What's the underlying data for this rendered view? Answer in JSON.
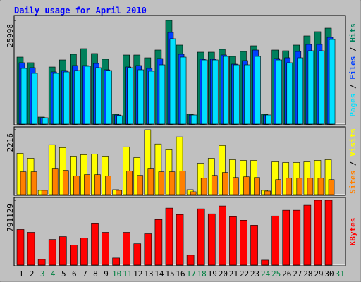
{
  "chart_data": {
    "type": "bar",
    "title": "Daily usage for April 2010",
    "legend_separator": " / ",
    "categories": [
      "1",
      "2",
      "3",
      "4",
      "5",
      "6",
      "7",
      "8",
      "9",
      "10",
      "11",
      "12",
      "13",
      "14",
      "15",
      "16",
      "17",
      "18",
      "19",
      "20",
      "21",
      "22",
      "23",
      "24",
      "25",
      "26",
      "27",
      "28",
      "29",
      "30",
      "31"
    ],
    "category_colors": [
      "#000000",
      "#000000",
      "#008040",
      "#008040",
      "#000000",
      "#000000",
      "#000000",
      "#000000",
      "#000000",
      "#008040",
      "#008040",
      "#000000",
      "#000000",
      "#000000",
      "#000000",
      "#000000",
      "#008040",
      "#008040",
      "#000000",
      "#000000",
      "#000000",
      "#000000",
      "#000000",
      "#008040",
      "#008040",
      "#000000",
      "#000000",
      "#000000",
      "#000000",
      "#000000",
      "#008040"
    ],
    "panels": [
      {
        "ylim": [
          0,
          25998
        ],
        "yticks": [
          25998
        ],
        "series": [
          {
            "name": "Hits",
            "color": "#00805c",
            "values": [
              16800,
              15390,
              1770,
              14320,
              16090,
              17510,
              18920,
              17690,
              16270,
              2480,
              17330,
              17330,
              16620,
              18570,
              25998,
              19810,
              2480,
              18040,
              18040,
              18750,
              16980,
              18220,
              19630,
              2480,
              18570,
              18390,
              19810,
              22110,
              23170,
              24050,
              0
            ]
          },
          {
            "name": "Files",
            "color": "#0040ff",
            "values": [
              15387,
              14149,
              1592,
              13088,
              13441,
              14679,
              14679,
              15210,
              13618,
              2299,
              14326,
              14679,
              13972,
              16448,
              22992,
              17509,
              2299,
              16271,
              16271,
              17332,
              15033,
              15917,
              18570,
              2299,
              16448,
              16625,
              18217,
              19985,
              19985,
              21754,
              0
            ]
          },
          {
            "name": "Pages",
            "color": "#00e0ff",
            "values": [
              13972,
              12734,
              1592,
              12734,
              13088,
              13441,
              14503,
              14149,
              13441,
              2122,
              14149,
              13618,
              13265,
              14856,
              21400,
              16802,
              2299,
              16094,
              16094,
              16979,
              14856,
              14856,
              16979,
              2299,
              16094,
              15387,
              16625,
              18393,
              18393,
              21223,
              0
            ]
          }
        ]
      },
      {
        "ylim": [
          0,
          2216
        ],
        "yticks": [
          2216
        ],
        "series": [
          {
            "name": "Visits",
            "color": "#ffff00",
            "values": [
              1412,
              1242,
              146,
              1705,
              1607,
              1315,
              1364,
              1388,
              1315,
              170,
              1632,
              1266,
              2216,
              1729,
              1534,
              1972,
              170,
              1071,
              1242,
              1680,
              1193,
              1169,
              1169,
              146,
              1120,
              1096,
              1096,
              1120,
              1169,
              1193,
              0
            ]
          },
          {
            "name": "Sites",
            "color": "#ff8000",
            "values": [
              779,
              779,
              146,
              877,
              828,
              633,
              682,
              682,
              633,
              146,
              804,
              657,
              877,
              779,
              779,
              804,
              97,
              560,
              657,
              755,
              584,
              609,
              584,
              122,
              511,
              560,
              560,
              560,
              560,
              511,
              0
            ]
          }
        ]
      },
      {
        "ylim": [
          0,
          791129
        ],
        "yticks": [
          791129
        ],
        "series": [
          {
            "name": "KBytes",
            "color": "#ff0000",
            "values": [
              434686,
              399912,
              69550,
              312974,
              347749,
              243425,
              330362,
              504237,
              399912,
              86937,
              399912,
              260812,
              382524,
              556399,
              695497,
              617225,
              121712,
              686804,
              625948,
              721580,
              591173,
              547705,
              486848,
              60856,
              599866,
              669418,
              669418,
              730270,
              791129,
              791129,
              0
            ]
          }
        ]
      }
    ]
  }
}
